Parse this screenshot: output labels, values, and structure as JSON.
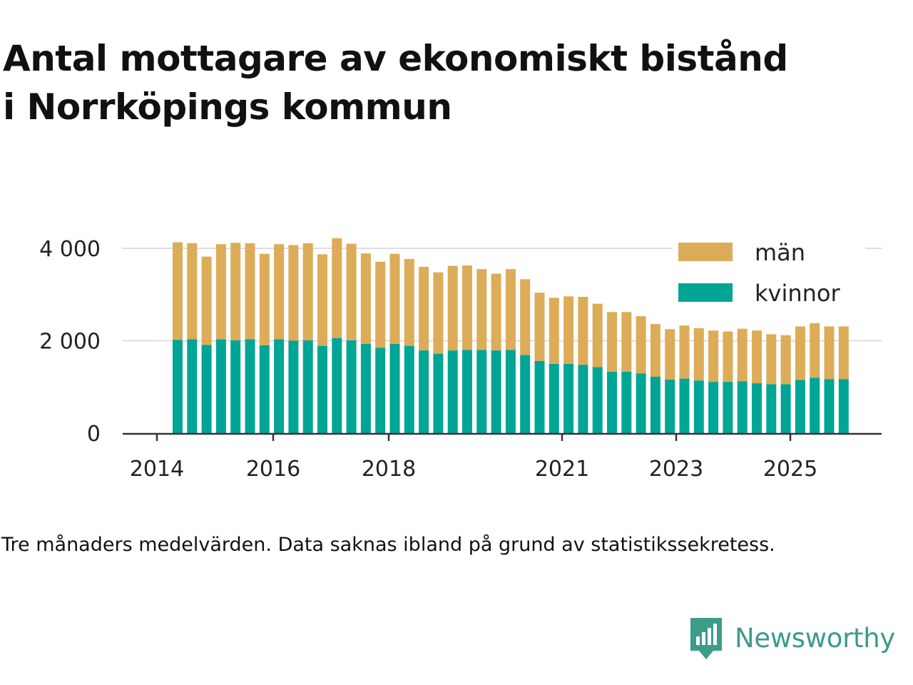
{
  "title_lines": [
    "Antal mottagare av ekonomiskt bistånd",
    "i Norrköpings kommun"
  ],
  "footnote": "Tre månaders medelvärden. Data saknas ibland på grund av statistikssekretess.",
  "brand": "Newsworthy",
  "colors": {
    "man": "#dcac58",
    "kvinnor": "#00a595",
    "grid": "#dedede",
    "axis": "#333333",
    "brand": "#3d9b8b"
  },
  "chart_data": {
    "type": "bar",
    "stacked": true,
    "ylim": [
      0,
      4200
    ],
    "yticks": [
      {
        "value": 0,
        "label": "0"
      },
      {
        "value": 2000,
        "label": "2 000"
      },
      {
        "value": 4000,
        "label": "4 000"
      }
    ],
    "xticks": [
      "2014",
      "2016",
      "2018",
      "2021",
      "2023",
      "2025"
    ],
    "grid": true,
    "legend_position": "top-right",
    "series": [
      {
        "name": "kvinnor",
        "values": [
          2020,
          2030,
          1910,
          2030,
          2010,
          2030,
          1900,
          2030,
          2000,
          2010,
          1890,
          2060,
          2010,
          1930,
          1850,
          1930,
          1890,
          1790,
          1720,
          1790,
          1800,
          1800,
          1790,
          1800,
          1690,
          1560,
          1500,
          1500,
          1480,
          1430,
          1330,
          1330,
          1290,
          1220,
          1160,
          1180,
          1140,
          1110,
          1110,
          1120,
          1080,
          1060,
          1060,
          1150,
          1200,
          1170,
          1170
        ]
      },
      {
        "name": "män",
        "values": [
          2110,
          2080,
          1910,
          2060,
          2110,
          2080,
          1980,
          2060,
          2070,
          2100,
          1980,
          2160,
          2090,
          1960,
          1860,
          1950,
          1880,
          1810,
          1760,
          1830,
          1830,
          1750,
          1660,
          1750,
          1640,
          1480,
          1430,
          1460,
          1470,
          1370,
          1290,
          1290,
          1240,
          1140,
          1090,
          1150,
          1130,
          1110,
          1090,
          1140,
          1140,
          1080,
          1060,
          1160,
          1180,
          1140,
          1140
        ]
      }
    ]
  }
}
